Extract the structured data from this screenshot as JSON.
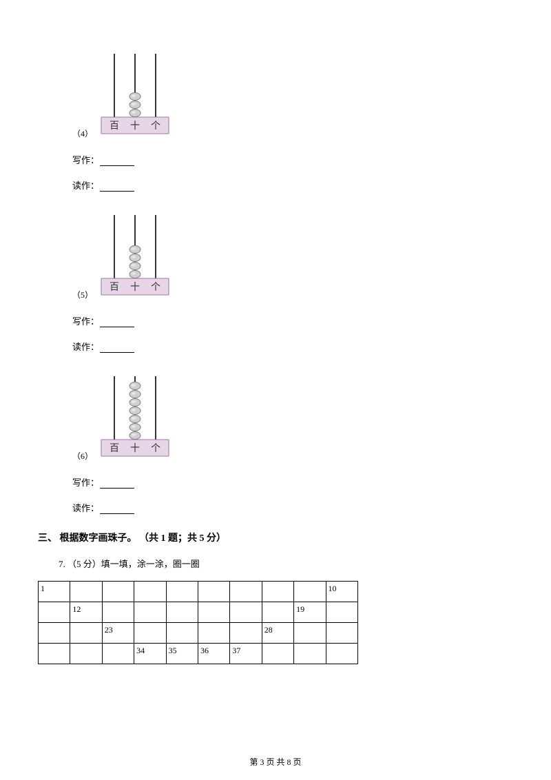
{
  "items": [
    {
      "num": "（4）",
      "beads": 3,
      "write_label": "写作：",
      "read_label": "读作："
    },
    {
      "num": "（5）",
      "beads": 4,
      "write_label": "写作：",
      "read_label": "读作："
    },
    {
      "num": "（6）",
      "beads": 7,
      "write_label": "写作：",
      "read_label": "读作："
    }
  ],
  "abacus": {
    "labels": [
      "百",
      "十",
      "个"
    ],
    "base_fill": "#e8d5e8",
    "base_stroke": "#9a7aa0",
    "rod_stroke": "#333333",
    "bead_fill": "#d0d0d0",
    "bead_stroke": "#808080",
    "label_color": "#333333"
  },
  "section3": {
    "heading": "三、 根据数字画珠子。 （共 1 题；共 5 分）",
    "q7_text": "7. （5 分）填一填，涂一涂，圈一圈"
  },
  "table": {
    "rows": [
      [
        "1",
        "",
        "",
        "",
        "",
        "",
        "",
        "",
        "",
        "10"
      ],
      [
        "",
        "12",
        "",
        "",
        "",
        "",
        "",
        "",
        "19",
        ""
      ],
      [
        "",
        "",
        "23",
        "",
        "",
        "",
        "",
        "28",
        "",
        ""
      ],
      [
        "",
        "",
        "",
        "34",
        "35",
        "36",
        "37",
        "",
        "",
        ""
      ]
    ]
  },
  "footer": "第 3 页 共 8 页"
}
